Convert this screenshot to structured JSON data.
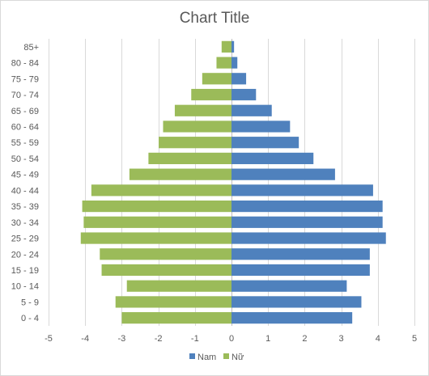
{
  "chart_data": {
    "type": "bar",
    "orientation": "horizontal",
    "title": "Chart Title",
    "xlabel": "",
    "ylabel": "",
    "categories": [
      "0 - 4",
      "5 - 9",
      "10 - 14",
      "15 - 19",
      "20 - 24",
      "25 - 29",
      "30 - 34",
      "35 - 39",
      "40 - 44",
      "45 - 49",
      "50 - 54",
      "55 - 59",
      "60 - 64",
      "65 - 69",
      "70 - 74",
      "75 - 79",
      "80 - 84",
      "85+"
    ],
    "series": [
      {
        "name": "Nam",
        "color": "#4f81bd",
        "values": [
          3.3,
          3.55,
          3.15,
          3.78,
          3.78,
          4.22,
          4.13,
          4.13,
          3.87,
          2.83,
          2.24,
          1.84,
          1.6,
          1.1,
          0.67,
          0.4,
          0.16,
          0.07
        ]
      },
      {
        "name": "Nữ",
        "color": "#9bbb59",
        "values": [
          -3.0,
          -3.17,
          -2.86,
          -3.55,
          -3.6,
          -4.12,
          -4.04,
          -4.08,
          -3.83,
          -2.79,
          -2.27,
          -1.99,
          -1.87,
          -1.55,
          -1.1,
          -0.8,
          -0.41,
          -0.27
        ]
      }
    ],
    "xlim": [
      -5,
      5
    ],
    "xticks": [
      "-5",
      "-4",
      "-3",
      "-2",
      "-1",
      "0",
      "1",
      "2",
      "3",
      "4",
      "5"
    ],
    "grid": true,
    "legend_position": "bottom"
  }
}
